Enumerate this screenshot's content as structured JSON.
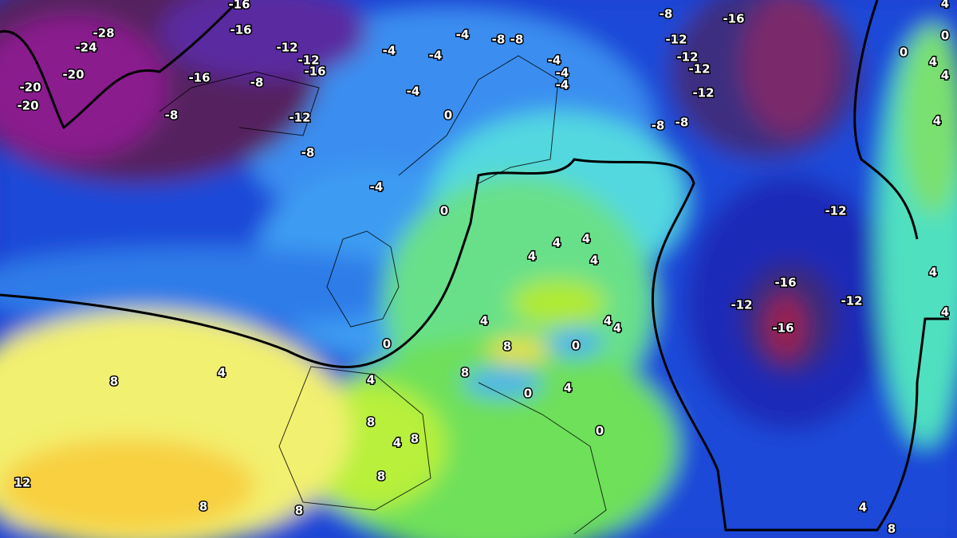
{
  "map": {
    "labels": [
      "-16",
      "-28",
      "-16",
      "-24",
      "-12",
      "-12",
      "-16",
      "-20",
      "-16",
      "-8",
      "-20",
      "-20",
      "-8",
      "-12",
      "-8",
      "-4",
      "-4",
      "-4",
      "-8",
      "-8",
      "-4",
      "-4",
      "-4",
      "-4",
      "0",
      "-8",
      "-16",
      "-12",
      "-12",
      "-12",
      "-12",
      "-8",
      "-8",
      "0",
      "4",
      "4",
      "4",
      "4",
      "0",
      "-4",
      "0",
      "-12",
      "4",
      "4",
      "4",
      "4",
      "-16",
      "-12",
      "-12",
      "-16",
      "4",
      "4",
      "4",
      "0",
      "8",
      "0",
      "4",
      "8",
      "4",
      "8",
      "0",
      "4",
      "8",
      "4",
      "8",
      "0",
      "8",
      "12",
      "8",
      "8",
      "4",
      "4",
      "4",
      "8"
    ]
  }
}
